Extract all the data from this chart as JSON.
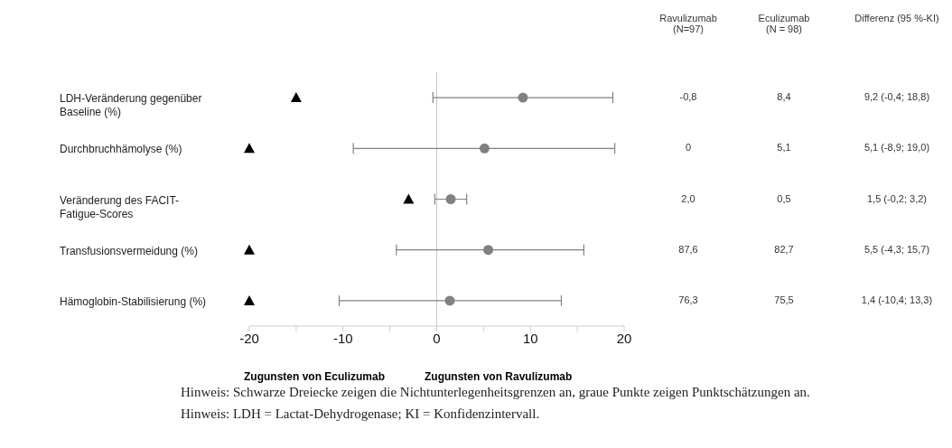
{
  "chart_data": {
    "type": "scatter",
    "orientation": "horizontal",
    "categories": [
      "LDH-Veränderung gegenüber Baseline (%)",
      "Durchbruchhämolyse (%)",
      "Veränderung des FACIT-Fatigue-Scores",
      "Transfusionsvermeidung (%)",
      "Hämoglobin-Stabilisierung (%)"
    ],
    "series": [
      {
        "color": "#808080",
        "marker": "circle",
        "values": [
          9.2,
          5.1,
          1.5,
          5.5,
          1.4
        ],
        "errors": [
          [
            -0.4,
            18.8
          ],
          [
            -8.9,
            19.0
          ],
          [
            -0.2,
            3.2
          ],
          [
            -4.3,
            15.7
          ],
          [
            -10.4,
            13.3
          ]
        ]
      },
      {
        "color": "#000000",
        "marker": "triangle",
        "values": [
          -15,
          -20,
          -3,
          -20,
          -20
        ]
      }
    ],
    "xlim": [
      -20,
      20
    ],
    "xticks": [
      -20,
      {
        "value": -15,
        "label": null
      },
      -10,
      {
        "value": -5,
        "label": null
      },
      0,
      {
        "value": 5,
        "label": null
      },
      10,
      {
        "value": 15,
        "label": null
      },
      20
    ],
    "ref_lines": [
      {
        "axis": "x",
        "value": 0,
        "color": "#c8c8c8"
      }
    ],
    "grid": false,
    "legend": false,
    "annotations": [
      "Ravulizumab (N=97)",
      "Eculizumab (N = 98)",
      "Differenz (95 %-KI)",
      "-0,8",
      "8,4",
      "9,2 (-0,4; 18,8)",
      "0",
      "5,1",
      "5,1 (-8,9; 19,0)",
      "2,0",
      "0,5",
      "1,5 (-0,2; 3,2)",
      "87,6",
      "82,7",
      "5,5 (-4,3; 15,7)",
      "76,3",
      "75,5",
      "1,4 (-10,4; 13,3)",
      "Zugunsten von Eculizumab",
      "Zugunsten von Ravulizumab",
      "Hinweis: Schwarze Dreiecke zeigen die Nichtunterlegenheitsgrenzen an, graue Punkte zeigen Punktschätzungen an.",
      "Hinweis: LDH =  Lactat-Dehydrogenase; KI = Konfidenzintervall."
    ]
  }
}
